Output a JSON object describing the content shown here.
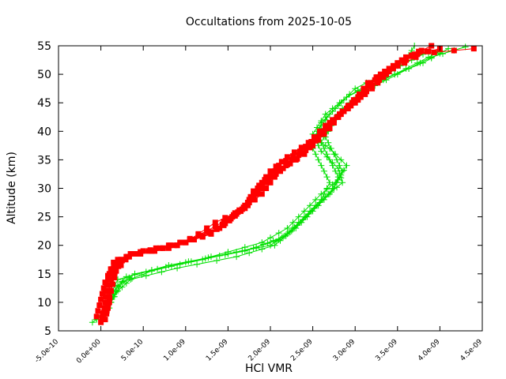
{
  "chart_data": {
    "type": "line",
    "title": "Occultations from 2025-10-05",
    "xlabel": "HCl VMR",
    "ylabel": "Altitude (km)",
    "xlim": [
      -5e-10,
      4.5e-09
    ],
    "ylim": [
      5,
      55
    ],
    "x_ticks": [
      "-5.0e-10",
      "0.0e+00",
      "5.0e-10",
      "1.0e-09",
      "1.5e-09",
      "2.0e-09",
      "2.5e-09",
      "3.0e-09",
      "3.5e-09",
      "4.0e-09",
      "4.5e-09"
    ],
    "x_tick_values": [
      -5e-10,
      0,
      5e-10,
      1e-09,
      1.5e-09,
      2e-09,
      2.5e-09,
      3e-09,
      3.5e-09,
      4e-09,
      4.5e-09
    ],
    "y_ticks": [
      "5",
      "10",
      "15",
      "20",
      "25",
      "30",
      "35",
      "40",
      "45",
      "50",
      "55"
    ],
    "y_tick_values": [
      5,
      10,
      15,
      20,
      25,
      30,
      35,
      40,
      45,
      50,
      55
    ],
    "grid": false,
    "series": [
      {
        "marker": "plus",
        "color": "#00e000",
        "profiles": [
          [
            [
              -1e-10,
              6.5
            ],
            [
              5e-11,
              8
            ],
            [
              1e-10,
              11
            ],
            [
              2e-10,
              14
            ],
            [
              8e-10,
              16.5
            ],
            [
              1.5e-09,
              18.5
            ],
            [
              2e-09,
              20
            ],
            [
              2.2e-09,
              22
            ],
            [
              2.4e-09,
              25
            ],
            [
              2.6e-09,
              28
            ],
            [
              2.7e-09,
              31
            ],
            [
              2.6e-09,
              34
            ],
            [
              2.5e-09,
              37
            ],
            [
              2.55e-09,
              40
            ],
            [
              2.7e-09,
              43
            ],
            [
              2.9e-09,
              46
            ],
            [
              3.3e-09,
              49
            ],
            [
              3.8e-09,
              52
            ],
            [
              4.1e-09,
              54.5
            ]
          ],
          [
            [
              -5e-11,
              7
            ],
            [
              1e-10,
              9
            ],
            [
              1.5e-10,
              12
            ],
            [
              3e-10,
              14.5
            ],
            [
              1e-09,
              17
            ],
            [
              1.7e-09,
              19
            ],
            [
              2.1e-09,
              21
            ],
            [
              2.3e-09,
              23
            ],
            [
              2.5e-09,
              26
            ],
            [
              2.7e-09,
              29
            ],
            [
              2.8e-09,
              32
            ],
            [
              2.7e-09,
              35
            ],
            [
              2.6e-09,
              38
            ],
            [
              2.7e-09,
              41
            ],
            [
              2.85e-09,
              44
            ],
            [
              3.1e-09,
              47
            ],
            [
              3.5e-09,
              50
            ],
            [
              3.9e-09,
              53
            ],
            [
              4.3e-09,
              54.8
            ]
          ],
          [
            [
              0.0,
              7.5
            ],
            [
              1.2e-10,
              10
            ],
            [
              2e-10,
              13
            ],
            [
              4e-10,
              15
            ],
            [
              1.2e-09,
              17.5
            ],
            [
              1.8e-09,
              19.5
            ],
            [
              2.15e-09,
              21.5
            ],
            [
              2.35e-09,
              24
            ],
            [
              2.55e-09,
              27
            ],
            [
              2.75e-09,
              30
            ],
            [
              2.85e-09,
              33
            ],
            [
              2.75e-09,
              36
            ],
            [
              2.65e-09,
              39
            ],
            [
              2.75e-09,
              42
            ],
            [
              2.95e-09,
              45
            ],
            [
              3.2e-09,
              48
            ],
            [
              3.6e-09,
              51
            ],
            [
              4e-09,
              54
            ]
          ],
          [
            [
              5e-11,
              8
            ],
            [
              1.5e-10,
              11
            ],
            [
              2.5e-10,
              13.5
            ],
            [
              6e-10,
              15.5
            ],
            [
              1.3e-09,
              18
            ],
            [
              1.9e-09,
              20.5
            ],
            [
              2.2e-09,
              23
            ],
            [
              2.4e-09,
              26
            ],
            [
              2.6e-09,
              29
            ],
            [
              2.8e-09,
              31.5
            ],
            [
              2.9e-09,
              34
            ],
            [
              2.7e-09,
              37
            ],
            [
              2.55e-09,
              38.5
            ],
            [
              2.6e-09,
              41.5
            ],
            [
              2.8e-09,
              44.5
            ],
            [
              3e-09,
              47.5
            ],
            [
              3.4e-09,
              50.5
            ],
            [
              3.8e-09,
              53.5
            ]
          ],
          [
            [
              8e-11,
              9
            ],
            [
              2e-10,
              12
            ],
            [
              3.5e-10,
              14
            ],
            [
              9e-10,
              16
            ],
            [
              1.6e-09,
              18
            ],
            [
              2.05e-09,
              20
            ],
            [
              2.25e-09,
              22.5
            ],
            [
              2.45e-09,
              25.5
            ],
            [
              2.65e-09,
              28.5
            ],
            [
              2.85e-09,
              31
            ],
            [
              2.8e-09,
              33.5
            ],
            [
              2.6e-09,
              36.5
            ],
            [
              2.5e-09,
              39.5
            ],
            [
              2.65e-09,
              43
            ],
            [
              2.9e-09,
              46
            ],
            [
              3.3e-09,
              49.5
            ],
            [
              3.6e-09,
              52.5
            ],
            [
              3.7e-09,
              55
            ]
          ]
        ]
      },
      {
        "marker": "square",
        "color": "#ff0000",
        "profiles": [
          [
            [
              0.0,
              6.5
            ],
            [
              5e-11,
              9
            ],
            [
              5e-11,
              12
            ],
            [
              1e-10,
              15
            ],
            [
              2e-10,
              17.5
            ],
            [
              6e-10,
              19
            ],
            [
              1e-09,
              20.5
            ],
            [
              1.3e-09,
              22
            ],
            [
              1.5e-09,
              24.5
            ],
            [
              1.7e-09,
              27
            ],
            [
              1.85e-09,
              30
            ],
            [
              2e-09,
              33
            ],
            [
              2.2e-09,
              35.5
            ],
            [
              2.45e-09,
              38
            ],
            [
              2.65e-09,
              41
            ],
            [
              2.9e-09,
              44
            ],
            [
              3.1e-09,
              47
            ],
            [
              3.3e-09,
              50
            ],
            [
              3.6e-09,
              53
            ],
            [
              4e-09,
              54.5
            ]
          ],
          [
            [
              5e-11,
              7
            ],
            [
              1e-10,
              10
            ],
            [
              1e-10,
              13
            ],
            [
              1.5e-10,
              16
            ],
            [
              3e-10,
              18
            ],
            [
              8e-10,
              19.5
            ],
            [
              1.1e-09,
              21
            ],
            [
              1.4e-09,
              23
            ],
            [
              1.6e-09,
              25.5
            ],
            [
              1.8e-09,
              28
            ],
            [
              1.95e-09,
              31
            ],
            [
              2.1e-09,
              34
            ],
            [
              2.35e-09,
              36.5
            ],
            [
              2.55e-09,
              39
            ],
            [
              2.75e-09,
              42
            ],
            [
              3e-09,
              45
            ],
            [
              3.2e-09,
              48
            ],
            [
              3.45e-09,
              51
            ],
            [
              3.85e-09,
              54
            ]
          ],
          [
            [
              -5e-11,
              7.5
            ],
            [
              0.0,
              10.5
            ],
            [
              5e-11,
              13.5
            ],
            [
              1.5e-10,
              17
            ],
            [
              4e-10,
              18.5
            ],
            [
              9e-10,
              20
            ],
            [
              1.2e-09,
              21.5
            ],
            [
              1.45e-09,
              23.5
            ],
            [
              1.65e-09,
              26
            ],
            [
              1.9e-09,
              29
            ],
            [
              2.05e-09,
              32
            ],
            [
              2.25e-09,
              35
            ],
            [
              2.5e-09,
              37.5
            ],
            [
              2.7e-09,
              40.5
            ],
            [
              2.85e-09,
              43.5
            ],
            [
              3.05e-09,
              46.5
            ],
            [
              3.25e-09,
              49.5
            ],
            [
              3.55e-09,
              52.5
            ],
            [
              3.9e-09,
              55
            ]
          ],
          [
            [
              2e-11,
              8
            ],
            [
              8e-11,
              11
            ],
            [
              1.2e-10,
              14
            ],
            [
              2.5e-10,
              17.5
            ],
            [
              5e-10,
              19
            ],
            [
              9.5e-10,
              20.5
            ],
            [
              1.25e-09,
              22.5
            ],
            [
              1.55e-09,
              25
            ],
            [
              1.75e-09,
              27.5
            ],
            [
              1.9e-09,
              30.5
            ],
            [
              2.15e-09,
              33.5
            ],
            [
              2.4e-09,
              36
            ],
            [
              2.6e-09,
              39.5
            ],
            [
              2.8e-09,
              42.5
            ],
            [
              3e-09,
              45.5
            ],
            [
              3.15e-09,
              48.5
            ],
            [
              3.5e-09,
              51.5
            ],
            [
              3.75e-09,
              54
            ]
          ],
          [
            [
              7e-11,
              8.5
            ],
            [
              1.2e-10,
              12
            ],
            [
              1.8e-10,
              15.5
            ],
            [
              3.5e-10,
              18.5
            ],
            [
              7e-10,
              19.5
            ],
            [
              1.05e-09,
              21
            ],
            [
              1.35e-09,
              24
            ],
            [
              1.7e-09,
              26.5
            ],
            [
              1.8e-09,
              29.5
            ],
            [
              2e-09,
              32.5
            ],
            [
              2.3e-09,
              35
            ],
            [
              2.55e-09,
              38.5
            ],
            [
              2.7e-09,
              41.5
            ],
            [
              2.95e-09,
              44.5
            ],
            [
              3.2e-09,
              47.5
            ],
            [
              3.4e-09,
              50.5
            ],
            [
              3.7e-09,
              53.5
            ],
            [
              4.4e-09,
              54.5
            ]
          ]
        ]
      }
    ]
  }
}
